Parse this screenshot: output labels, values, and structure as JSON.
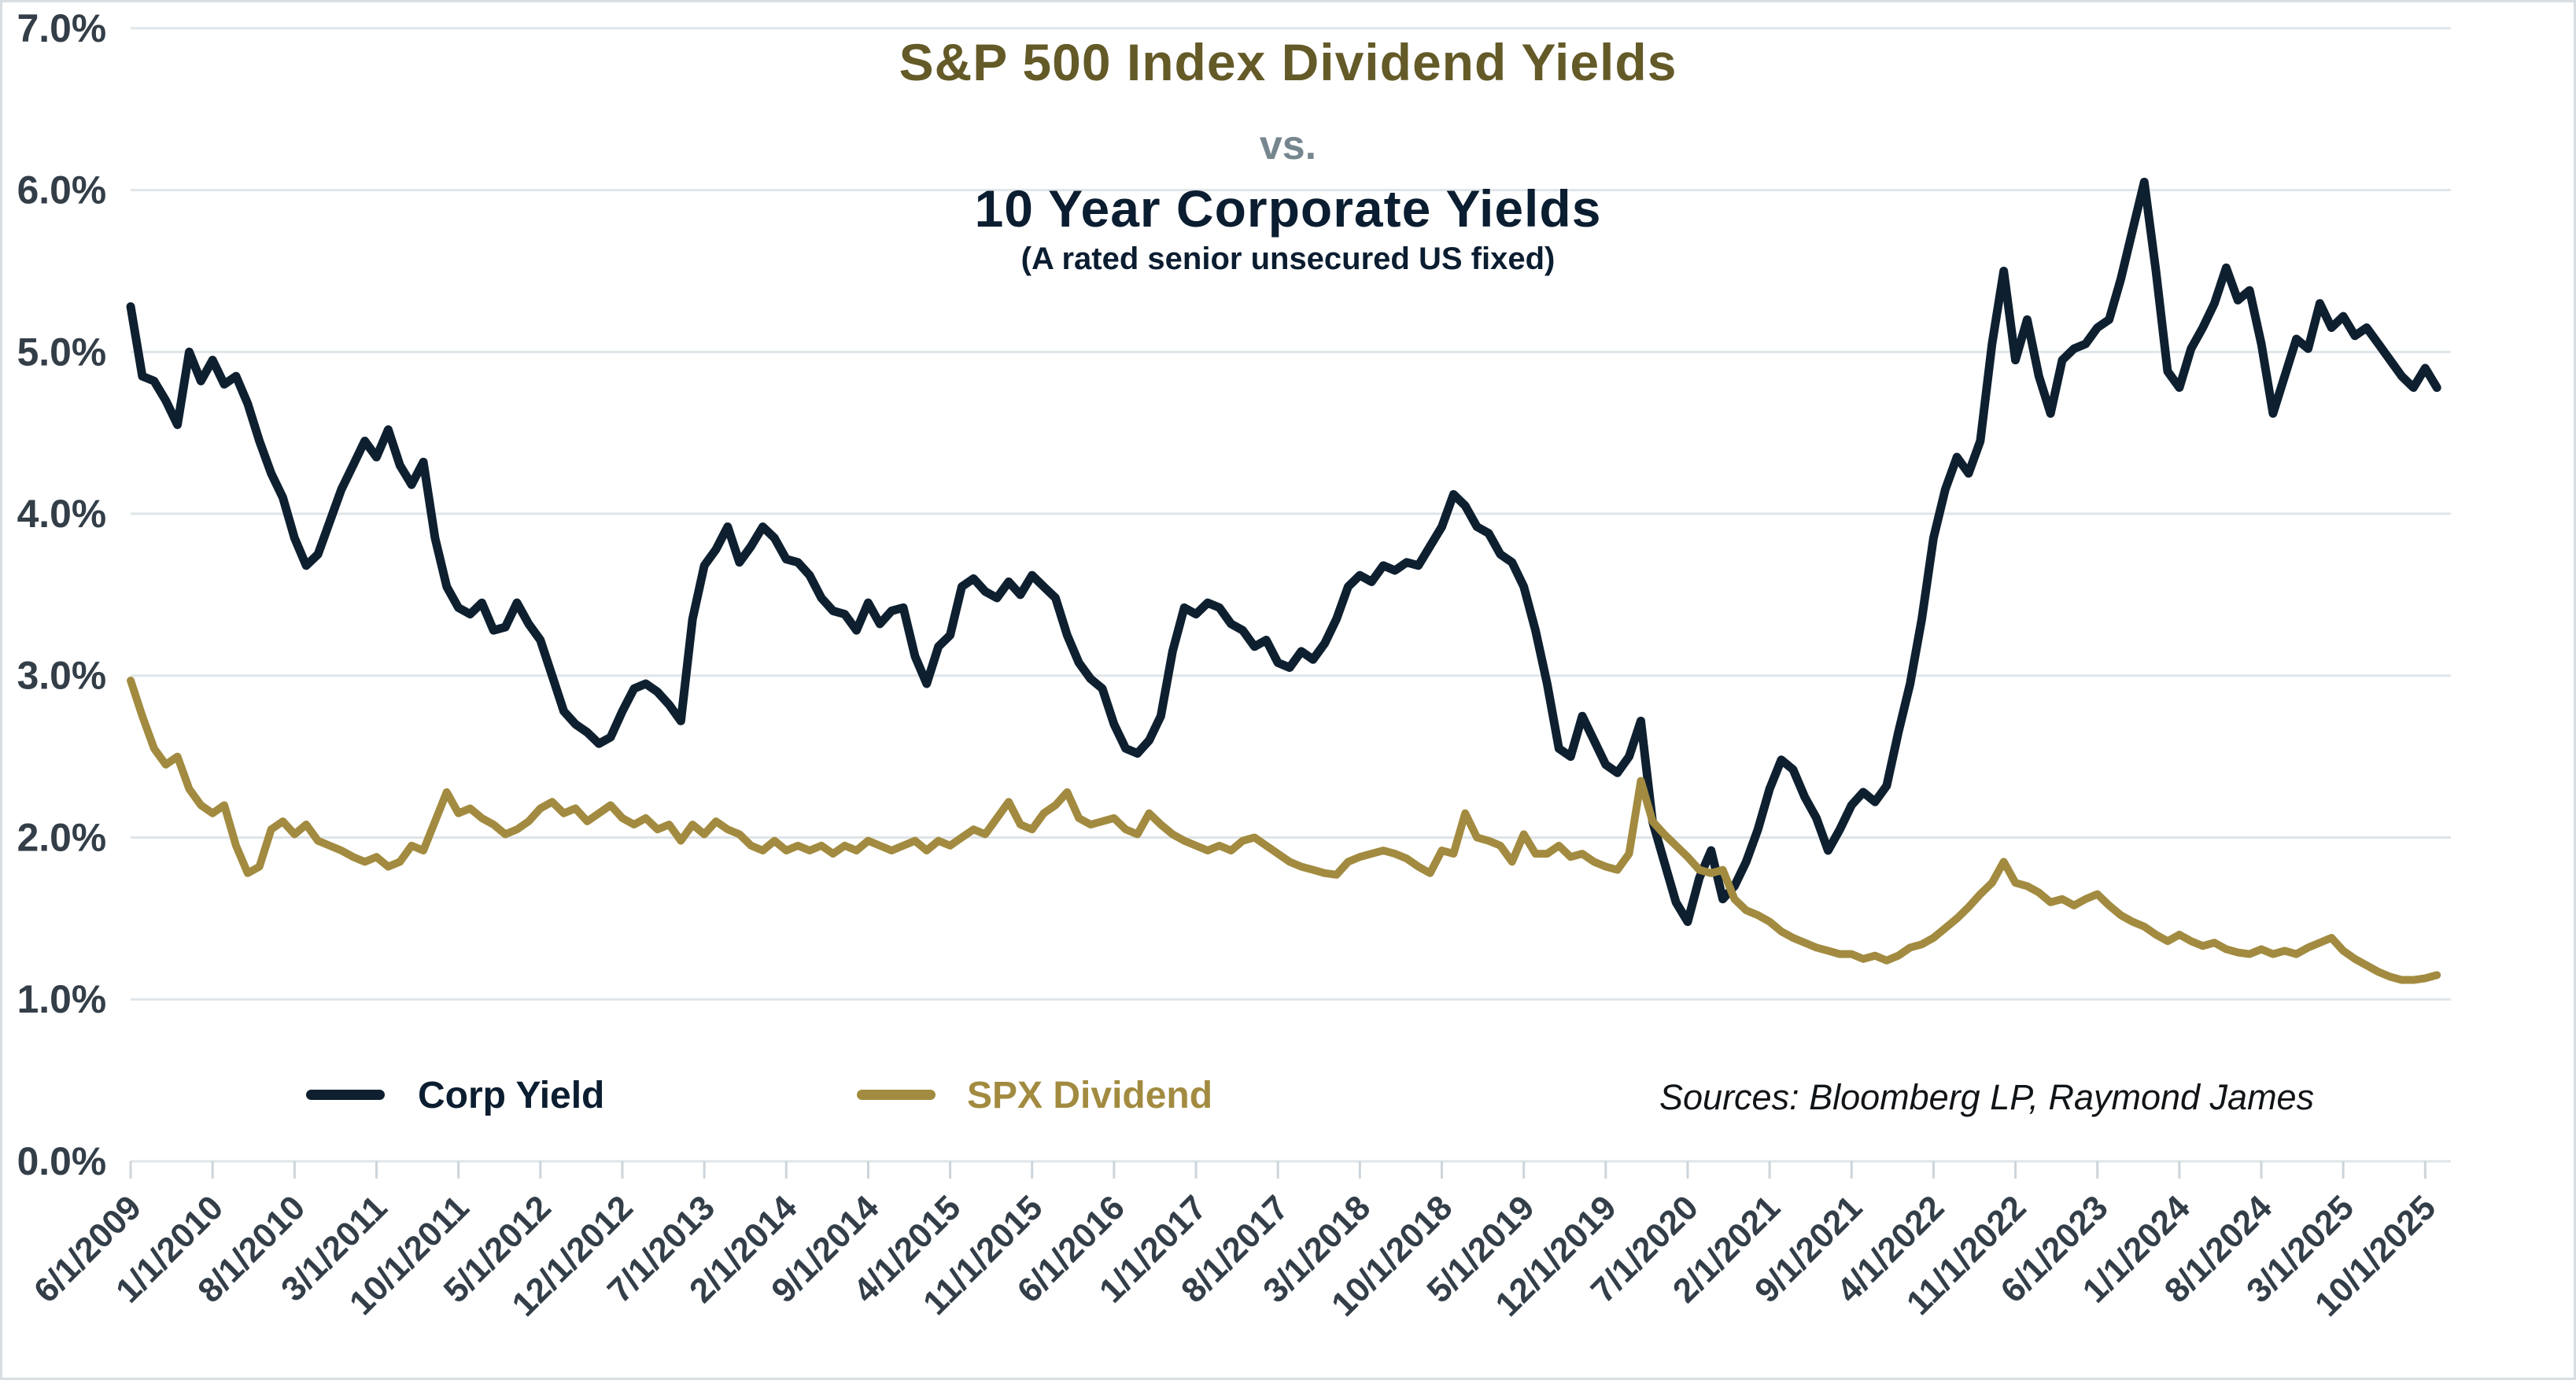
{
  "titles": {
    "main": "S&P 500 Index Dividend Yields",
    "vs": "vs.",
    "sub": "10 Year Corporate Yields",
    "note": "(A rated senior unsecured US fixed)"
  },
  "legend": {
    "corp_label": "Corp Yield",
    "spx_label": "SPX Dividend"
  },
  "sources": "Sources: Bloomberg LP, Raymond James",
  "colors": {
    "corp_line": "#0e2030",
    "spx_line": "#a28b40",
    "grid": "#dfe5e9",
    "axis_tick": "#ccd5db",
    "axis_label": "#333e48",
    "title_gold": "#645a28",
    "title_vs": "#75868f",
    "title_navy": "#0b1d30"
  },
  "chart_data": {
    "type": "line",
    "title": "S&P 500 Index Dividend Yields vs. 10 Year Corporate Yields",
    "subtitle": "(A rated senior unsecured US fixed)",
    "xlabel": "",
    "ylabel": "",
    "ylim": [
      0,
      7
    ],
    "grid": "horizontal",
    "legend_position": "bottom-left",
    "y_tick_labels": [
      "0.0%",
      "1.0%",
      "2.0%",
      "3.0%",
      "4.0%",
      "5.0%",
      "6.0%",
      "7.0%"
    ],
    "x_frequency": "monthly",
    "x_start": "6/1/2009",
    "x_end": "11/1/2025",
    "x_tick_every_n_months": 7,
    "x_tick_labels": [
      "6/1/2009",
      "1/1/2010",
      "8/1/2010",
      "3/1/2011",
      "10/1/2011",
      "5/1/2012",
      "12/1/2012",
      "7/1/2013",
      "2/1/2014",
      "9/1/2014",
      "4/1/2015",
      "11/1/2015",
      "6/1/2016",
      "1/1/2017",
      "8/1/2017",
      "3/1/2018",
      "10/1/2018",
      "5/1/2019",
      "12/1/2019",
      "7/1/2020",
      "2/1/2021",
      "9/1/2021",
      "4/1/2022",
      "11/1/2022",
      "6/1/2023",
      "1/1/2024",
      "8/1/2024",
      "3/1/2025",
      "10/1/2025"
    ],
    "series": [
      {
        "name": "Corp Yield",
        "color": "#0e2030",
        "values": [
          5.28,
          4.85,
          4.82,
          4.7,
          4.55,
          5.0,
          4.82,
          4.95,
          4.8,
          4.85,
          4.68,
          4.45,
          4.25,
          4.1,
          3.85,
          3.68,
          3.75,
          3.95,
          4.15,
          4.3,
          4.45,
          4.35,
          4.52,
          4.3,
          4.18,
          4.32,
          3.85,
          3.55,
          3.42,
          3.38,
          3.45,
          3.28,
          3.3,
          3.45,
          3.32,
          3.22,
          3.0,
          2.78,
          2.7,
          2.65,
          2.58,
          2.62,
          2.78,
          2.92,
          2.95,
          2.9,
          2.82,
          2.72,
          3.35,
          3.68,
          3.78,
          3.92,
          3.7,
          3.8,
          3.92,
          3.85,
          3.72,
          3.7,
          3.62,
          3.48,
          3.4,
          3.38,
          3.28,
          3.45,
          3.32,
          3.4,
          3.42,
          3.12,
          2.95,
          3.18,
          3.25,
          3.55,
          3.6,
          3.52,
          3.48,
          3.58,
          3.5,
          3.62,
          3.55,
          3.48,
          3.25,
          3.08,
          2.98,
          2.92,
          2.7,
          2.55,
          2.52,
          2.6,
          2.75,
          3.15,
          3.42,
          3.38,
          3.45,
          3.42,
          3.32,
          3.28,
          3.18,
          3.22,
          3.08,
          3.05,
          3.15,
          3.1,
          3.2,
          3.35,
          3.55,
          3.62,
          3.58,
          3.68,
          3.65,
          3.7,
          3.68,
          3.8,
          3.92,
          4.12,
          4.05,
          3.92,
          3.88,
          3.75,
          3.7,
          3.55,
          3.28,
          2.95,
          2.55,
          2.5,
          2.75,
          2.6,
          2.45,
          2.4,
          2.5,
          2.72,
          2.1,
          1.85,
          1.6,
          1.48,
          1.75,
          1.92,
          1.62,
          1.7,
          1.85,
          2.05,
          2.3,
          2.48,
          2.42,
          2.25,
          2.12,
          1.92,
          2.05,
          2.2,
          2.28,
          2.22,
          2.32,
          2.65,
          2.95,
          3.35,
          3.85,
          4.15,
          4.35,
          4.25,
          4.45,
          5.05,
          5.5,
          4.95,
          5.2,
          4.85,
          4.62,
          4.95,
          5.02,
          5.05,
          5.15,
          5.2,
          5.45,
          5.75,
          6.05,
          5.5,
          4.88,
          4.78,
          5.02,
          5.15,
          5.3,
          5.52,
          5.32,
          5.38,
          5.05,
          4.62,
          4.85,
          5.08,
          5.02,
          5.3,
          5.15,
          5.22,
          5.1,
          5.15,
          5.05,
          4.95,
          4.85,
          4.78,
          4.9,
          4.78
        ]
      },
      {
        "name": "SPX Dividend",
        "color": "#a28b40",
        "values": [
          2.97,
          2.75,
          2.55,
          2.45,
          2.5,
          2.3,
          2.2,
          2.15,
          2.2,
          1.95,
          1.78,
          1.82,
          2.05,
          2.1,
          2.02,
          2.08,
          1.98,
          1.95,
          1.92,
          1.88,
          1.85,
          1.88,
          1.82,
          1.85,
          1.95,
          1.92,
          2.1,
          2.28,
          2.15,
          2.18,
          2.12,
          2.08,
          2.02,
          2.05,
          2.1,
          2.18,
          2.22,
          2.15,
          2.18,
          2.1,
          2.15,
          2.2,
          2.12,
          2.08,
          2.12,
          2.05,
          2.08,
          1.98,
          2.08,
          2.02,
          2.1,
          2.05,
          2.02,
          1.95,
          1.92,
          1.98,
          1.92,
          1.95,
          1.92,
          1.95,
          1.9,
          1.95,
          1.92,
          1.98,
          1.95,
          1.92,
          1.95,
          1.98,
          1.92,
          1.98,
          1.95,
          2.0,
          2.05,
          2.02,
          2.12,
          2.22,
          2.08,
          2.05,
          2.15,
          2.2,
          2.28,
          2.12,
          2.08,
          2.1,
          2.12,
          2.05,
          2.02,
          2.15,
          2.08,
          2.02,
          1.98,
          1.95,
          1.92,
          1.95,
          1.92,
          1.98,
          2.0,
          1.95,
          1.9,
          1.85,
          1.82,
          1.8,
          1.78,
          1.77,
          1.85,
          1.88,
          1.9,
          1.92,
          1.9,
          1.87,
          1.82,
          1.78,
          1.92,
          1.9,
          2.15,
          2.0,
          1.98,
          1.95,
          1.85,
          2.02,
          1.9,
          1.9,
          1.95,
          1.88,
          1.9,
          1.85,
          1.82,
          1.8,
          1.9,
          2.35,
          2.1,
          2.02,
          1.95,
          1.88,
          1.8,
          1.78,
          1.8,
          1.62,
          1.55,
          1.52,
          1.48,
          1.42,
          1.38,
          1.35,
          1.32,
          1.3,
          1.28,
          1.28,
          1.25,
          1.27,
          1.24,
          1.27,
          1.32,
          1.34,
          1.38,
          1.44,
          1.5,
          1.57,
          1.65,
          1.72,
          1.85,
          1.72,
          1.7,
          1.66,
          1.6,
          1.62,
          1.58,
          1.62,
          1.65,
          1.58,
          1.52,
          1.48,
          1.45,
          1.4,
          1.36,
          1.4,
          1.36,
          1.33,
          1.35,
          1.31,
          1.29,
          1.28,
          1.31,
          1.28,
          1.3,
          1.28,
          1.32,
          1.35,
          1.38,
          1.3,
          1.25,
          1.21,
          1.17,
          1.14,
          1.12,
          1.12,
          1.13,
          1.15
        ]
      }
    ]
  }
}
